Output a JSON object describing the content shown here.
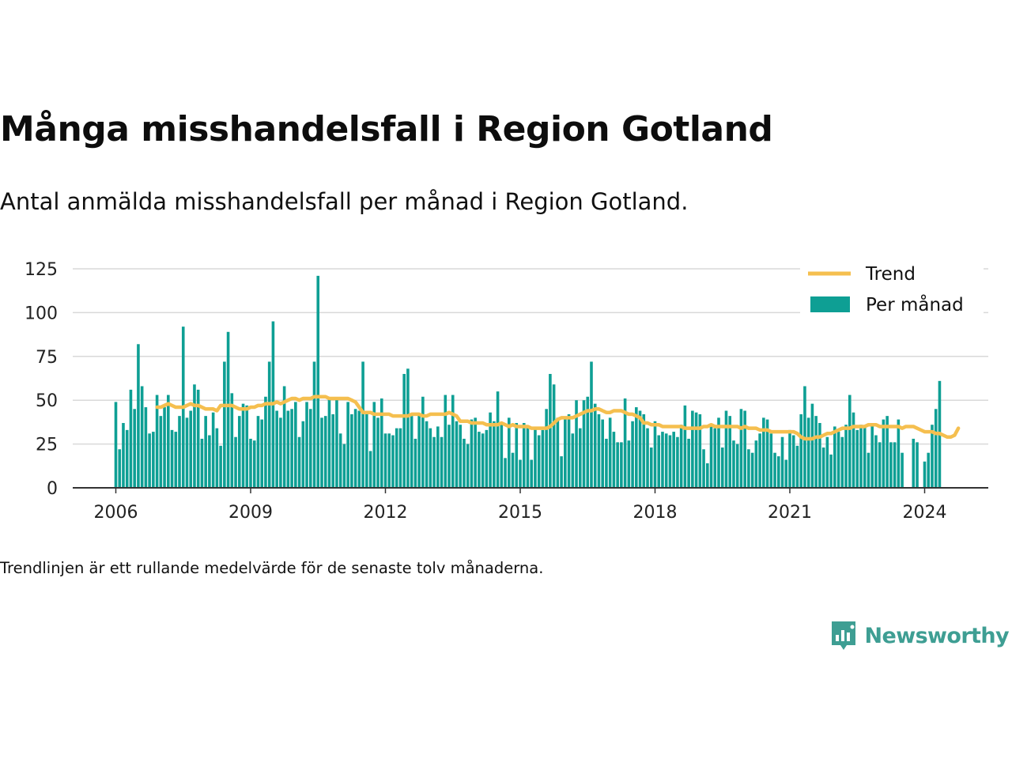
{
  "header": {
    "title": "Många misshandelsfall i Region Gotland",
    "subtitle": "Antal anmälda misshandelsfall per månad i Region Gotland."
  },
  "footer": {
    "note": "Trendlinjen är ett rullande medelvärde för de senaste tolv månaderna.",
    "brand": "Newsworthy"
  },
  "colors": {
    "bar": "#0e9f94",
    "trend": "#f5bf4f",
    "grid": "#d9d9d9",
    "axis": "#333333",
    "brand": "#3e9e93"
  },
  "chart_data": {
    "type": "bar",
    "x_start": "2006-01",
    "x_ticks": [
      "2006",
      "2009",
      "2012",
      "2015",
      "2018",
      "2021",
      "2024"
    ],
    "y_ticks": [
      0,
      25,
      50,
      75,
      100,
      125
    ],
    "ylim": [
      0,
      125
    ],
    "grid": true,
    "legend_position": "top-right",
    "series": [
      {
        "name": "Per månad",
        "type": "bar",
        "values": [
          49,
          22,
          37,
          33,
          56,
          45,
          82,
          58,
          46,
          31,
          32,
          53,
          41,
          46,
          53,
          33,
          32,
          41,
          92,
          40,
          44,
          59,
          56,
          28,
          41,
          30,
          43,
          34,
          24,
          72,
          89,
          54,
          29,
          41,
          48,
          47,
          28,
          27,
          41,
          39,
          52,
          72,
          95,
          44,
          40,
          58,
          44,
          45,
          49,
          29,
          38,
          49,
          45,
          72,
          121,
          40,
          41,
          51,
          42,
          51,
          31,
          25,
          49,
          42,
          45,
          44,
          72,
          43,
          21,
          49,
          40,
          51,
          31,
          31,
          30,
          34,
          34,
          65,
          68,
          41,
          28,
          42,
          52,
          38,
          34,
          29,
          35,
          29,
          53,
          36,
          53,
          38,
          36,
          28,
          25,
          39,
          40,
          32,
          31,
          33,
          43,
          38,
          55,
          36,
          17,
          40,
          20,
          37,
          16,
          37,
          35,
          16,
          34,
          30,
          33,
          45,
          65,
          59,
          40,
          18,
          40,
          42,
          31,
          50,
          34,
          50,
          52,
          72,
          48,
          42,
          39,
          28,
          40,
          32,
          26,
          26,
          51,
          27,
          38,
          46,
          44,
          42,
          34,
          23,
          38,
          30,
          32,
          31,
          30,
          32,
          29,
          36,
          47,
          28,
          44,
          43,
          42,
          22,
          14,
          35,
          34,
          40,
          23,
          44,
          41,
          27,
          25,
          45,
          44,
          22,
          20,
          27,
          31,
          40,
          39,
          31,
          20,
          18,
          29,
          16,
          33,
          30,
          24,
          42,
          58,
          40,
          48,
          41,
          37,
          23,
          29,
          19,
          35,
          32,
          29,
          36,
          53,
          43,
          33,
          36,
          35,
          20,
          36,
          30,
          26,
          39,
          41,
          26,
          26,
          39,
          20,
          0,
          0,
          28,
          26,
          0,
          15,
          20,
          36,
          45,
          61
        ]
      },
      {
        "name": "Trend",
        "type": "line",
        "start_index": 11,
        "values": [
          46,
          46,
          47,
          48,
          47,
          46,
          46,
          46,
          47,
          48,
          47,
          47,
          46,
          45,
          45,
          45,
          44,
          47,
          47,
          47,
          47,
          46,
          45,
          45,
          45,
          46,
          46,
          47,
          47,
          48,
          48,
          48,
          49,
          48,
          49,
          50,
          51,
          51,
          50,
          51,
          51,
          51,
          52,
          52,
          52,
          52,
          51,
          51,
          51,
          51,
          51,
          51,
          50,
          49,
          46,
          43,
          43,
          43,
          42,
          42,
          42,
          42,
          42,
          41,
          41,
          41,
          41,
          41,
          42,
          42,
          42,
          41,
          41,
          42,
          42,
          42,
          42,
          42,
          43,
          42,
          41,
          38,
          38,
          38,
          37,
          37,
          37,
          37,
          36,
          36,
          36,
          36,
          37,
          36,
          35,
          36,
          35,
          35,
          35,
          35,
          34,
          34,
          34,
          34,
          34,
          35,
          37,
          39,
          40,
          40,
          40,
          40,
          41,
          42,
          43,
          44,
          44,
          45,
          45,
          44,
          43,
          43,
          44,
          44,
          44,
          43,
          42,
          42,
          41,
          40,
          37,
          37,
          36,
          36,
          36,
          35,
          35,
          35,
          35,
          35,
          35,
          34,
          34,
          34,
          34,
          34,
          35,
          35,
          36,
          35,
          35,
          35,
          35,
          35,
          35,
          35,
          34,
          35,
          34,
          34,
          34,
          33,
          33,
          33,
          32,
          32,
          32,
          32,
          32,
          32,
          32,
          31,
          29,
          28,
          28,
          28,
          29,
          29,
          30,
          31,
          31,
          32,
          33,
          34,
          34,
          34,
          35,
          35,
          35,
          35,
          36,
          36,
          36,
          35,
          35,
          35,
          35,
          35,
          35,
          34,
          35,
          35,
          35,
          34,
          33,
          32,
          32,
          32,
          31,
          31,
          30,
          29,
          29,
          30,
          34
        ]
      }
    ]
  }
}
